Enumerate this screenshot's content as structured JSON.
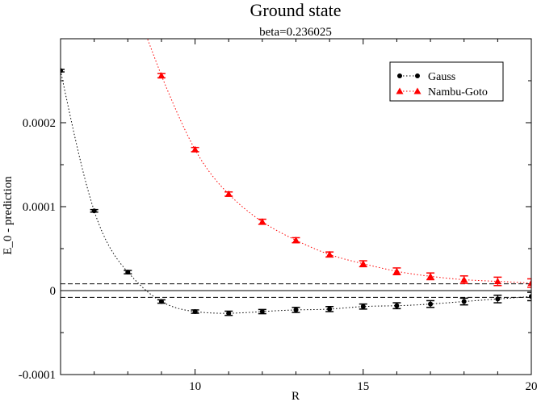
{
  "chart_data": {
    "type": "scatter",
    "title": "Ground state",
    "subtitle": "beta=0.236025",
    "xlabel": "R",
    "ylabel": "E_0 - prediction",
    "xlim": [
      6,
      20
    ],
    "ylim": [
      -0.0001,
      0.0003
    ],
    "x_ticks": [
      10,
      15,
      20
    ],
    "x_tick_labels": [
      "10",
      "15",
      "20"
    ],
    "y_ticks": [
      -0.0001,
      0,
      0.0001,
      0.0002
    ],
    "y_tick_labels": [
      "-0.0001",
      "0",
      "0.0001",
      "0.0002"
    ],
    "grid": false,
    "legend_position": "top-right",
    "reference_lines": [
      {
        "y": 0,
        "style": "solid"
      },
      {
        "y": 8e-06,
        "style": "dashed"
      },
      {
        "y": -8e-06,
        "style": "dashed"
      }
    ],
    "series": [
      {
        "name": "Gauss",
        "color": "#000000",
        "marker": "circle",
        "line": "dotted",
        "x": [
          6,
          7,
          8,
          9,
          10,
          11,
          12,
          13,
          14,
          15,
          16,
          17,
          18,
          19,
          20
        ],
        "y": [
          0.000262,
          9.5e-05,
          2.2e-05,
          -1.3e-05,
          -2.5e-05,
          -2.7e-05,
          -2.5e-05,
          -2.3e-05,
          -2.2e-05,
          -1.9e-05,
          -1.8e-05,
          -1.6e-05,
          -1.3e-05,
          -1e-05,
          -7e-06
        ],
        "err": [
          1.5e-06,
          1.5e-06,
          2e-06,
          2e-06,
          2e-06,
          2.5e-06,
          2.5e-06,
          3e-06,
          3e-06,
          3e-06,
          3.5e-06,
          4e-06,
          4e-06,
          4.5e-06,
          5e-06
        ]
      },
      {
        "name": "Nambu-Goto",
        "color": "#ff0000",
        "marker": "triangle",
        "line": "dotted",
        "x": [
          9,
          10,
          11,
          12,
          13,
          14,
          15,
          16,
          17,
          18,
          19,
          20
        ],
        "y": [
          0.000256,
          0.000168,
          0.000115,
          8.2e-05,
          6e-05,
          4.3e-05,
          3.2e-05,
          2.3e-05,
          1.7e-05,
          1.3e-05,
          1.1e-05,
          9e-06
        ],
        "err": [
          2.5e-06,
          2.5e-06,
          2.5e-06,
          3e-06,
          3e-06,
          3e-06,
          3.5e-06,
          4e-06,
          4e-06,
          4.5e-06,
          5e-06,
          5e-06
        ]
      }
    ]
  }
}
